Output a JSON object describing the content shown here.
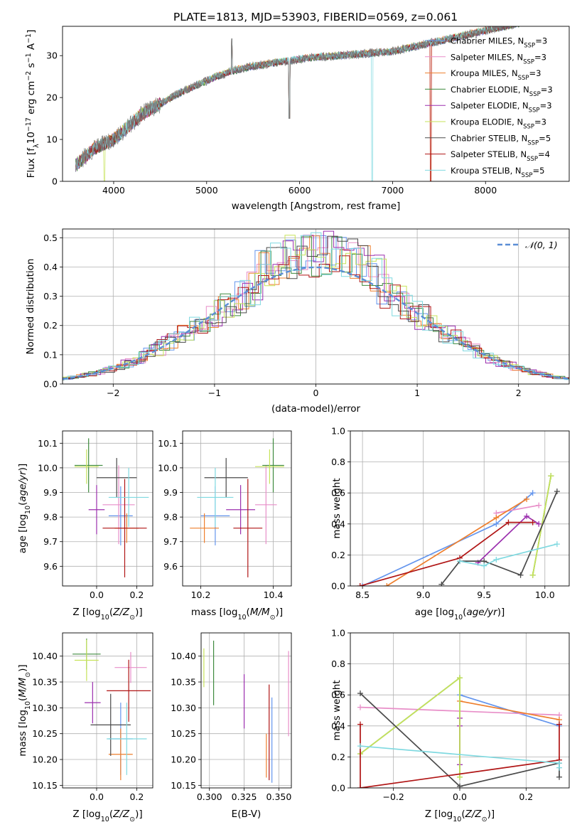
{
  "figure": {
    "title": "PLATE=1813, MJD=53903, FIBERID=0569, z=0.061"
  },
  "models": [
    {
      "name": "Chabrier MILES",
      "nssp": "3",
      "color": "#6495ED"
    },
    {
      "name": "Salpeter MILES",
      "nssp": "3",
      "color": "#E88EC8"
    },
    {
      "name": "Kroupa MILES",
      "nssp": "3",
      "color": "#EE7F2D"
    },
    {
      "name": "Chabrier ELODIE",
      "nssp": "3",
      "color": "#3E8A3E"
    },
    {
      "name": "Salpeter ELODIE",
      "nssp": "3",
      "color": "#9B2FAE"
    },
    {
      "name": "Kroupa ELODIE",
      "nssp": "3",
      "color": "#C7E35A"
    },
    {
      "name": "Chabrier STELIB",
      "nssp": "5",
      "color": "#4A4A4A"
    },
    {
      "name": "Salpeter STELIB",
      "nssp": "4",
      "color": "#B01515"
    },
    {
      "name": "Kroupa STELIB",
      "nssp": "5",
      "color": "#7FD9E0"
    }
  ],
  "chart_data": [
    {
      "id": "spectrum",
      "type": "line",
      "xlabel": "wavelength [Angstrom, rest frame]",
      "ylabel": "Flux [f_λ 10^-17 erg cm^-2 s^-1 A^-1]",
      "xlim": [
        3450,
        8900
      ],
      "ylim": [
        0,
        37
      ],
      "xticks": [
        4000,
        5000,
        6000,
        7000,
        8000
      ],
      "yticks": [
        0,
        10,
        20,
        30
      ],
      "legend": "right",
      "data_trend": {
        "x": [
          3600,
          3700,
          3800,
          3900,
          4000,
          4100,
          4200,
          4300,
          4500,
          4700,
          4900,
          5100,
          5300,
          5500,
          5800,
          6100,
          6400,
          6700,
          7000,
          7300,
          7600,
          8000,
          8400,
          8800
        ],
        "y": [
          4,
          6,
          8,
          9,
          10,
          12,
          14,
          16,
          18.5,
          21,
          23,
          25,
          26.5,
          27.5,
          28.5,
          29.5,
          30,
          30.5,
          31,
          32.5,
          34,
          36,
          38,
          40
        ]
      },
      "features": [
        {
          "x": 5270,
          "y": 34,
          "kind": "spike"
        },
        {
          "x": 5890,
          "y": 15,
          "kind": "dip"
        },
        {
          "x": 6780,
          "y": 0,
          "kind": "model_drop"
        },
        {
          "x": 7410,
          "y": 0,
          "kind": "model_drop"
        },
        {
          "x": 3900,
          "y": 0,
          "kind": "model_drop"
        }
      ]
    },
    {
      "id": "residuals",
      "type": "line",
      "xlabel": "(data-model)/error",
      "ylabel": "Normed distribution",
      "xlim": [
        -2.5,
        2.5
      ],
      "ylim": [
        0,
        0.53
      ],
      "xticks": [
        -2,
        -1,
        0,
        1,
        2
      ],
      "yticks": [
        0,
        0.1,
        0.2,
        0.3,
        0.4,
        0.5
      ],
      "grid": true,
      "legend": "top-right",
      "reference_label": "𝒩(0, 1)",
      "reference": {
        "type": "gaussian",
        "mean": 0,
        "sigma": 1
      }
    },
    {
      "id": "z_age",
      "type": "scatter",
      "xlabel": "Z [log10(Z/Z⊙)]",
      "ylabel": "age [log10(age/yr)]",
      "xlim": [
        -0.17,
        0.28
      ],
      "ylim": [
        9.52,
        10.15
      ],
      "xticks": [
        0.0,
        0.2
      ],
      "yticks": [
        9.6,
        9.7,
        9.8,
        9.9,
        10.0,
        10.1
      ],
      "grid": true,
      "points": [
        {
          "x": 0.12,
          "y": 9.805,
          "xerr": 0.06,
          "yerr": 0.12,
          "c": 0
        },
        {
          "x": 0.11,
          "y": 9.85,
          "xerr": 0.08,
          "yerr": 0.16,
          "c": 1
        },
        {
          "x": 0.15,
          "y": 9.755,
          "xerr": 0.06,
          "yerr": 0.06,
          "c": 2
        },
        {
          "x": -0.04,
          "y": 10.01,
          "xerr": 0.07,
          "yerr": 0.11,
          "c": 3
        },
        {
          "x": 0.0,
          "y": 9.83,
          "xerr": 0.04,
          "yerr": 0.1,
          "c": 4
        },
        {
          "x": -0.05,
          "y": 10.005,
          "xerr": 0.06,
          "yerr": 0.07,
          "c": 5
        },
        {
          "x": 0.1,
          "y": 9.96,
          "xerr": 0.1,
          "yerr": 0.08,
          "c": 6
        },
        {
          "x": 0.14,
          "y": 9.755,
          "xerr": 0.11,
          "yerr": 0.2,
          "c": 7
        },
        {
          "x": 0.16,
          "y": 9.88,
          "xerr": 0.1,
          "yerr": 0.12,
          "c": 8
        }
      ]
    },
    {
      "id": "mass_age",
      "type": "scatter",
      "xlabel": "mass [log10(M/M⊙)]",
      "ylabel": "",
      "xlim": [
        10.15,
        10.45
      ],
      "ylim": [
        9.52,
        10.15
      ],
      "xticks": [
        10.2,
        10.4
      ],
      "yticks": [
        9.6,
        9.7,
        9.8,
        9.9,
        10.0,
        10.1
      ],
      "grid": true,
      "points": [
        {
          "x": 10.24,
          "y": 9.805,
          "xerr": 0.04,
          "yerr": 0.12,
          "c": 0
        },
        {
          "x": 10.38,
          "y": 9.85,
          "xerr": 0.03,
          "yerr": 0.16,
          "c": 1
        },
        {
          "x": 10.21,
          "y": 9.755,
          "xerr": 0.04,
          "yerr": 0.06,
          "c": 2
        },
        {
          "x": 10.4,
          "y": 10.01,
          "xerr": 0.03,
          "yerr": 0.11,
          "c": 3
        },
        {
          "x": 10.31,
          "y": 9.83,
          "xerr": 0.04,
          "yerr": 0.1,
          "c": 4
        },
        {
          "x": 10.39,
          "y": 10.005,
          "xerr": 0.04,
          "yerr": 0.07,
          "c": 5
        },
        {
          "x": 10.27,
          "y": 9.96,
          "xerr": 0.06,
          "yerr": 0.08,
          "c": 6
        },
        {
          "x": 10.33,
          "y": 9.755,
          "xerr": 0.04,
          "yerr": 0.2,
          "c": 7
        },
        {
          "x": 10.24,
          "y": 9.88,
          "xerr": 0.05,
          "yerr": 0.12,
          "c": 8
        }
      ]
    },
    {
      "id": "age_weight",
      "type": "line",
      "xlabel": "age [log10(age/yr)]",
      "ylabel": "mass weight",
      "xlim": [
        8.4,
        10.2
      ],
      "ylim": [
        0,
        1
      ],
      "xticks": [
        8.5,
        9.0,
        9.5,
        10.0
      ],
      "yticks": [
        0.0,
        0.2,
        0.4,
        0.6,
        0.8,
        1.0
      ],
      "grid": true,
      "series": [
        {
          "c": 0,
          "x": [
            8.5,
            9.6,
            9.9
          ],
          "y": [
            0.0,
            0.4,
            0.6
          ]
        },
        {
          "c": 1,
          "x": [
            9.6,
            9.95
          ],
          "y": [
            0.47,
            0.52
          ]
        },
        {
          "c": 2,
          "x": [
            8.7,
            9.6,
            9.85
          ],
          "y": [
            0.0,
            0.44,
            0.56
          ]
        },
        {
          "c": 3,
          "x": [
            9.9,
            10.05
          ],
          "y": [
            0.07,
            0.71
          ]
        },
        {
          "c": 4,
          "x": [
            9.45,
            9.85,
            9.95
          ],
          "y": [
            0.15,
            0.45,
            0.4
          ]
        },
        {
          "c": 5,
          "x": [
            9.9,
            10.05
          ],
          "y": [
            0.07,
            0.71
          ]
        },
        {
          "c": 6,
          "x": [
            9.15,
            9.3,
            9.5,
            9.8,
            10.1
          ],
          "y": [
            0.01,
            0.16,
            0.16,
            0.07,
            0.61
          ]
        },
        {
          "c": 7,
          "x": [
            8.48,
            9.3,
            9.7,
            9.9
          ],
          "y": [
            0.0,
            0.18,
            0.41,
            0.41
          ]
        },
        {
          "c": 8,
          "x": [
            9.3,
            9.5,
            9.6,
            10.1
          ],
          "y": [
            0.16,
            0.13,
            0.17,
            0.27
          ]
        }
      ]
    },
    {
      "id": "z_mass",
      "type": "scatter",
      "xlabel": "Z [log10(Z/Z⊙)]",
      "ylabel": "mass [log10(M/M⊙)]",
      "xlim": [
        -0.17,
        0.28
      ],
      "ylim": [
        10.145,
        10.445
      ],
      "xticks": [
        0.0,
        0.2
      ],
      "yticks": [
        10.15,
        10.2,
        10.25,
        10.3,
        10.35,
        10.4
      ],
      "grid": true,
      "points": [
        {
          "x": 0.12,
          "y": 10.24,
          "xerr": 0.06,
          "yerr": 0.07,
          "c": 0
        },
        {
          "x": 0.17,
          "y": 10.378,
          "xerr": 0.08,
          "yerr": 0.03,
          "c": 1
        },
        {
          "x": 0.12,
          "y": 10.21,
          "xerr": 0.06,
          "yerr": 0.05,
          "c": 2
        },
        {
          "x": -0.05,
          "y": 10.404,
          "xerr": 0.07,
          "yerr": 0.03,
          "c": 3
        },
        {
          "x": -0.02,
          "y": 10.31,
          "xerr": 0.04,
          "yerr": 0.04,
          "c": 4
        },
        {
          "x": -0.05,
          "y": 10.392,
          "xerr": 0.06,
          "yerr": 0.04,
          "c": 5
        },
        {
          "x": 0.07,
          "y": 10.267,
          "xerr": 0.1,
          "yerr": 0.06,
          "c": 6
        },
        {
          "x": 0.16,
          "y": 10.333,
          "xerr": 0.11,
          "yerr": 0.06,
          "c": 7
        },
        {
          "x": 0.15,
          "y": 10.24,
          "xerr": 0.1,
          "yerr": 0.07,
          "c": 8
        }
      ]
    },
    {
      "id": "ebv_mass",
      "type": "scatter",
      "xlabel": "E(B-V)",
      "ylabel": "",
      "xlim": [
        0.294,
        0.359
      ],
      "ylim": [
        10.145,
        10.445
      ],
      "xticks": [
        0.3,
        0.325,
        0.35
      ],
      "ytick_labels": [
        "10.15",
        "10.20",
        "10.25",
        "10.30",
        "10.35",
        "10.40"
      ],
      "grid": true,
      "segments": [
        {
          "x": 0.296,
          "y1": 10.34,
          "y2": 10.415,
          "c": 5
        },
        {
          "x": 0.303,
          "y1": 10.305,
          "y2": 10.43,
          "c": 3
        },
        {
          "x": 0.325,
          "y1": 10.26,
          "y2": 10.365,
          "c": 4
        },
        {
          "x": 0.341,
          "y1": 10.165,
          "y2": 10.25,
          "c": 2
        },
        {
          "x": 0.343,
          "y1": 10.16,
          "y2": 10.345,
          "c": 7
        },
        {
          "x": 0.345,
          "y1": 10.155,
          "y2": 10.32,
          "c": 0
        },
        {
          "x": 0.357,
          "y1": 10.245,
          "y2": 10.41,
          "c": 1
        }
      ]
    },
    {
      "id": "z_weight",
      "type": "line",
      "xlabel": "Z [log10(Z/Z⊙)]",
      "ylabel": "mass weight",
      "xlim": [
        -0.33,
        0.33
      ],
      "ylim": [
        0,
        1
      ],
      "xticks": [
        -0.2,
        0.0,
        0.2
      ],
      "yticks": [
        0.0,
        0.2,
        0.4,
        0.6,
        0.8,
        1.0
      ],
      "grid": true,
      "series": [
        {
          "c": 0,
          "x": [
            0.0,
            0.3
          ],
          "y": [
            0.6,
            0.4
          ]
        },
        {
          "c": 1,
          "x": [
            -0.3,
            0.3
          ],
          "y": [
            0.52,
            0.47
          ]
        },
        {
          "c": 2,
          "x": [
            0.0,
            0.3
          ],
          "y": [
            0.56,
            0.44
          ]
        },
        {
          "c": 3,
          "x": [
            -0.3,
            0.0,
            0.0
          ],
          "y": [
            0.22,
            0.71,
            0.07
          ]
        },
        {
          "c": 4,
          "x": [
            0.0,
            0.0,
            0.0
          ],
          "y": [
            0.15,
            0.4,
            0.45
          ]
        },
        {
          "c": 5,
          "x": [
            -0.3,
            0.0,
            0.0
          ],
          "y": [
            0.22,
            0.71,
            0.07
          ]
        },
        {
          "c": 6,
          "x": [
            -0.3,
            0.0,
            0.3,
            0.3
          ],
          "y": [
            0.61,
            0.01,
            0.16,
            0.07
          ]
        },
        {
          "c": 7,
          "x": [
            -0.3,
            -0.3,
            0.3,
            0.3
          ],
          "y": [
            0.41,
            0.0,
            0.18,
            0.41
          ]
        },
        {
          "c": 8,
          "x": [
            -0.3,
            0.3,
            0.3
          ],
          "y": [
            0.27,
            0.16,
            0.13
          ]
        }
      ]
    }
  ]
}
